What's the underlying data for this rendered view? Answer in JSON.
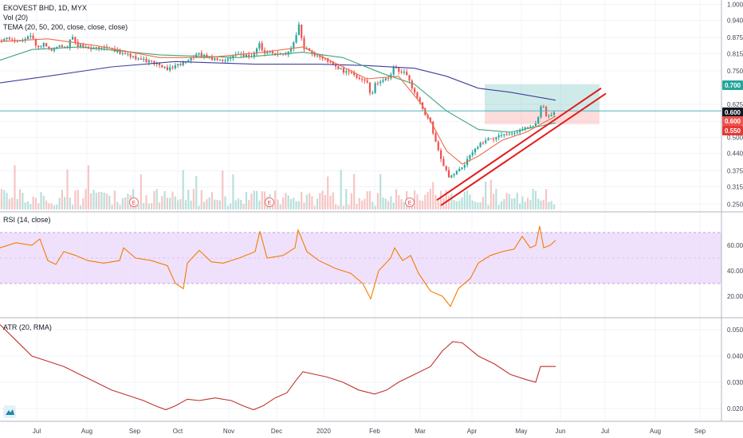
{
  "header": {
    "symbol_line": "EKOVEST BHD, 1D, MYX",
    "volume_label": "Vol (20)",
    "tema_label": "TEMA (20, 50, 200, close, close, close)"
  },
  "rsi_panel": {
    "label": "RSI (14, close)"
  },
  "atr_panel": {
    "label": "ATR (20, RMA)"
  },
  "price_tags": [
    {
      "text": "0.700",
      "color": "#26a69a"
    },
    {
      "text": "0.600",
      "color": "#131722"
    },
    {
      "text": "0.600",
      "color": "#ef5350"
    },
    {
      "text": "0.550",
      "color": "#e53935"
    }
  ],
  "earnings_marker": "E",
  "colors": {
    "up": "#26a69a",
    "down": "#ef5350",
    "tema20": "#ef6c4a",
    "tema50": "#3fa678",
    "tema200": "#3f3f9f",
    "trendline": "#e21c1c",
    "rsi_line": "#f57c00",
    "rsi_band": "#e9d7fb",
    "atr_line": "#c0342d",
    "hline": "#4fb3bf"
  },
  "chart_data": [
    {
      "type": "candlestick",
      "title": "EKOVEST BHD, 1D, MYX",
      "y_axis_ticks": [
        "1.000",
        "0.940",
        "0.875",
        "0.815",
        "0.750",
        "0.625",
        "0.560",
        "0.500",
        "0.440",
        "0.375",
        "0.315",
        "0.250"
      ],
      "ylim": [
        0.23,
        1.01
      ],
      "x_axis_ticks": [
        "Jul",
        "Aug",
        "Sep",
        "Oct",
        "Nov",
        "Dec",
        "2020",
        "Feb",
        "Mar",
        "Apr",
        "May",
        "Jun",
        "Jul",
        "Aug",
        "Sep"
      ],
      "close_keypoints": [
        {
          "x": 0,
          "y": 0.865
        },
        {
          "x": 10,
          "y": 0.875
        },
        {
          "x": 20,
          "y": 0.86
        },
        {
          "x": 30,
          "y": 0.87
        },
        {
          "x": 40,
          "y": 0.885
        },
        {
          "x": 45,
          "y": 0.84
        },
        {
          "x": 55,
          "y": 0.85
        },
        {
          "x": 65,
          "y": 0.83
        },
        {
          "x": 75,
          "y": 0.845
        },
        {
          "x": 85,
          "y": 0.84
        },
        {
          "x": 90,
          "y": 0.89
        },
        {
          "x": 95,
          "y": 0.85
        },
        {
          "x": 105,
          "y": 0.84
        },
        {
          "x": 115,
          "y": 0.83
        },
        {
          "x": 125,
          "y": 0.84
        },
        {
          "x": 135,
          "y": 0.835
        },
        {
          "x": 140,
          "y": 0.83
        },
        {
          "x": 150,
          "y": 0.82
        },
        {
          "x": 160,
          "y": 0.81
        },
        {
          "x": 170,
          "y": 0.8
        },
        {
          "x": 180,
          "y": 0.79
        },
        {
          "x": 190,
          "y": 0.785
        },
        {
          "x": 200,
          "y": 0.77
        },
        {
          "x": 210,
          "y": 0.755
        },
        {
          "x": 220,
          "y": 0.77
        },
        {
          "x": 230,
          "y": 0.78
        },
        {
          "x": 240,
          "y": 0.8
        },
        {
          "x": 250,
          "y": 0.815
        },
        {
          "x": 260,
          "y": 0.8
        },
        {
          "x": 270,
          "y": 0.795
        },
        {
          "x": 280,
          "y": 0.79
        },
        {
          "x": 290,
          "y": 0.8
        },
        {
          "x": 300,
          "y": 0.81
        },
        {
          "x": 310,
          "y": 0.805
        },
        {
          "x": 320,
          "y": 0.81
        },
        {
          "x": 325,
          "y": 0.86
        },
        {
          "x": 330,
          "y": 0.81
        },
        {
          "x": 340,
          "y": 0.82
        },
        {
          "x": 350,
          "y": 0.81
        },
        {
          "x": 360,
          "y": 0.815
        },
        {
          "x": 370,
          "y": 0.86
        },
        {
          "x": 375,
          "y": 0.92
        },
        {
          "x": 380,
          "y": 0.84
        },
        {
          "x": 390,
          "y": 0.82
        },
        {
          "x": 400,
          "y": 0.8
        },
        {
          "x": 410,
          "y": 0.79
        },
        {
          "x": 420,
          "y": 0.77
        },
        {
          "x": 430,
          "y": 0.75
        },
        {
          "x": 440,
          "y": 0.74
        },
        {
          "x": 450,
          "y": 0.72
        },
        {
          "x": 460,
          "y": 0.71
        },
        {
          "x": 465,
          "y": 0.65
        },
        {
          "x": 470,
          "y": 0.7
        },
        {
          "x": 480,
          "y": 0.71
        },
        {
          "x": 490,
          "y": 0.73
        },
        {
          "x": 495,
          "y": 0.77
        },
        {
          "x": 500,
          "y": 0.745
        },
        {
          "x": 505,
          "y": 0.75
        },
        {
          "x": 510,
          "y": 0.73
        },
        {
          "x": 515,
          "y": 0.7
        },
        {
          "x": 520,
          "y": 0.67
        },
        {
          "x": 525,
          "y": 0.64
        },
        {
          "x": 530,
          "y": 0.61
        },
        {
          "x": 535,
          "y": 0.58
        },
        {
          "x": 540,
          "y": 0.56
        },
        {
          "x": 545,
          "y": 0.5
        },
        {
          "x": 550,
          "y": 0.45
        },
        {
          "x": 555,
          "y": 0.4
        },
        {
          "x": 560,
          "y": 0.37
        },
        {
          "x": 565,
          "y": 0.345
        },
        {
          "x": 570,
          "y": 0.37
        },
        {
          "x": 575,
          "y": 0.38
        },
        {
          "x": 580,
          "y": 0.39
        },
        {
          "x": 585,
          "y": 0.41
        },
        {
          "x": 590,
          "y": 0.43
        },
        {
          "x": 595,
          "y": 0.45
        },
        {
          "x": 600,
          "y": 0.47
        },
        {
          "x": 605,
          "y": 0.48
        },
        {
          "x": 610,
          "y": 0.49
        },
        {
          "x": 620,
          "y": 0.5
        },
        {
          "x": 630,
          "y": 0.505
        },
        {
          "x": 640,
          "y": 0.51
        },
        {
          "x": 650,
          "y": 0.52
        },
        {
          "x": 660,
          "y": 0.535
        },
        {
          "x": 670,
          "y": 0.55
        },
        {
          "x": 675,
          "y": 0.57
        },
        {
          "x": 680,
          "y": 0.64
        },
        {
          "x": 685,
          "y": 0.58
        },
        {
          "x": 690,
          "y": 0.585
        },
        {
          "x": 697,
          "y": 0.595
        }
      ],
      "tema20_keypoints": [
        {
          "x": 0,
          "y": 0.86
        },
        {
          "x": 60,
          "y": 0.87
        },
        {
          "x": 120,
          "y": 0.845
        },
        {
          "x": 200,
          "y": 0.8
        },
        {
          "x": 260,
          "y": 0.8
        },
        {
          "x": 330,
          "y": 0.82
        },
        {
          "x": 380,
          "y": 0.84
        },
        {
          "x": 420,
          "y": 0.78
        },
        {
          "x": 460,
          "y": 0.72
        },
        {
          "x": 500,
          "y": 0.73
        },
        {
          "x": 530,
          "y": 0.62
        },
        {
          "x": 560,
          "y": 0.45
        },
        {
          "x": 580,
          "y": 0.4
        },
        {
          "x": 600,
          "y": 0.43
        },
        {
          "x": 630,
          "y": 0.49
        },
        {
          "x": 660,
          "y": 0.52
        },
        {
          "x": 697,
          "y": 0.58
        }
      ],
      "tema50_keypoints": [
        {
          "x": 0,
          "y": 0.79
        },
        {
          "x": 40,
          "y": 0.83
        },
        {
          "x": 100,
          "y": 0.84
        },
        {
          "x": 200,
          "y": 0.81
        },
        {
          "x": 300,
          "y": 0.8
        },
        {
          "x": 380,
          "y": 0.82
        },
        {
          "x": 430,
          "y": 0.8
        },
        {
          "x": 480,
          "y": 0.74
        },
        {
          "x": 520,
          "y": 0.7
        },
        {
          "x": 560,
          "y": 0.6
        },
        {
          "x": 600,
          "y": 0.53
        },
        {
          "x": 640,
          "y": 0.52
        },
        {
          "x": 697,
          "y": 0.555
        }
      ],
      "tema200_keypoints": [
        {
          "x": 0,
          "y": 0.705
        },
        {
          "x": 60,
          "y": 0.73
        },
        {
          "x": 140,
          "y": 0.765
        },
        {
          "x": 220,
          "y": 0.785
        },
        {
          "x": 320,
          "y": 0.775
        },
        {
          "x": 400,
          "y": 0.775
        },
        {
          "x": 460,
          "y": 0.77
        },
        {
          "x": 520,
          "y": 0.76
        },
        {
          "x": 560,
          "y": 0.73
        },
        {
          "x": 600,
          "y": 0.685
        },
        {
          "x": 640,
          "y": 0.67
        },
        {
          "x": 697,
          "y": 0.64
        }
      ],
      "trendlines": [
        {
          "from": {
            "x": 548,
            "y": 0.265
          },
          "to": {
            "x": 754,
            "y": 0.685
          }
        },
        {
          "from": {
            "x": 553,
            "y": 0.245
          },
          "to": {
            "x": 760,
            "y": 0.665
          }
        }
      ],
      "zones": [
        {
          "label": "profit",
          "from_x": 608,
          "to_x": 752,
          "y_low": 0.6,
          "y_high": 0.7
        },
        {
          "label": "loss",
          "from_x": 608,
          "to_x": 752,
          "y_low": 0.55,
          "y_high": 0.6
        }
      ],
      "hline": 0.6,
      "earnings_x": [
        168,
        338,
        514
      ]
    },
    {
      "type": "line",
      "title": "RSI (14, close)",
      "y_axis_ticks": [
        "60.00",
        "40.00",
        "20.00"
      ],
      "ylim": [
        5,
        85
      ],
      "band": [
        30,
        70
      ],
      "keypoints": [
        {
          "x": 0,
          "y": 58
        },
        {
          "x": 20,
          "y": 62
        },
        {
          "x": 40,
          "y": 60
        },
        {
          "x": 50,
          "y": 65
        },
        {
          "x": 60,
          "y": 48
        },
        {
          "x": 70,
          "y": 45
        },
        {
          "x": 80,
          "y": 55
        },
        {
          "x": 95,
          "y": 52
        },
        {
          "x": 110,
          "y": 48
        },
        {
          "x": 130,
          "y": 46
        },
        {
          "x": 150,
          "y": 48
        },
        {
          "x": 155,
          "y": 58
        },
        {
          "x": 170,
          "y": 50
        },
        {
          "x": 190,
          "y": 48
        },
        {
          "x": 210,
          "y": 44
        },
        {
          "x": 220,
          "y": 30
        },
        {
          "x": 230,
          "y": 26
        },
        {
          "x": 235,
          "y": 46
        },
        {
          "x": 250,
          "y": 56
        },
        {
          "x": 265,
          "y": 47
        },
        {
          "x": 280,
          "y": 46
        },
        {
          "x": 300,
          "y": 50
        },
        {
          "x": 320,
          "y": 55
        },
        {
          "x": 326,
          "y": 71
        },
        {
          "x": 335,
          "y": 50
        },
        {
          "x": 355,
          "y": 52
        },
        {
          "x": 370,
          "y": 58
        },
        {
          "x": 374,
          "y": 72
        },
        {
          "x": 385,
          "y": 55
        },
        {
          "x": 400,
          "y": 48
        },
        {
          "x": 420,
          "y": 42
        },
        {
          "x": 440,
          "y": 38
        },
        {
          "x": 455,
          "y": 30
        },
        {
          "x": 465,
          "y": 18
        },
        {
          "x": 475,
          "y": 40
        },
        {
          "x": 490,
          "y": 50
        },
        {
          "x": 495,
          "y": 58
        },
        {
          "x": 505,
          "y": 48
        },
        {
          "x": 515,
          "y": 52
        },
        {
          "x": 525,
          "y": 38
        },
        {
          "x": 540,
          "y": 24
        },
        {
          "x": 555,
          "y": 20
        },
        {
          "x": 565,
          "y": 12
        },
        {
          "x": 575,
          "y": 26
        },
        {
          "x": 590,
          "y": 34
        },
        {
          "x": 600,
          "y": 46
        },
        {
          "x": 615,
          "y": 52
        },
        {
          "x": 630,
          "y": 55
        },
        {
          "x": 645,
          "y": 57
        },
        {
          "x": 655,
          "y": 67
        },
        {
          "x": 665,
          "y": 58
        },
        {
          "x": 672,
          "y": 60
        },
        {
          "x": 677,
          "y": 75
        },
        {
          "x": 682,
          "y": 58
        },
        {
          "x": 690,
          "y": 60
        },
        {
          "x": 697,
          "y": 64
        }
      ]
    },
    {
      "type": "line",
      "title": "ATR (20, RMA)",
      "y_axis_ticks": [
        "0.050",
        "0.040",
        "0.030",
        "0.020"
      ],
      "ylim": [
        0.016,
        0.054
      ],
      "keypoints": [
        {
          "x": 0,
          "y": 0.052
        },
        {
          "x": 20,
          "y": 0.046
        },
        {
          "x": 40,
          "y": 0.04
        },
        {
          "x": 60,
          "y": 0.038
        },
        {
          "x": 80,
          "y": 0.036
        },
        {
          "x": 100,
          "y": 0.033
        },
        {
          "x": 120,
          "y": 0.03
        },
        {
          "x": 140,
          "y": 0.027
        },
        {
          "x": 160,
          "y": 0.025
        },
        {
          "x": 180,
          "y": 0.023
        },
        {
          "x": 195,
          "y": 0.021
        },
        {
          "x": 208,
          "y": 0.0195
        },
        {
          "x": 220,
          "y": 0.021
        },
        {
          "x": 235,
          "y": 0.0235
        },
        {
          "x": 250,
          "y": 0.023
        },
        {
          "x": 270,
          "y": 0.024
        },
        {
          "x": 290,
          "y": 0.023
        },
        {
          "x": 305,
          "y": 0.021
        },
        {
          "x": 318,
          "y": 0.0195
        },
        {
          "x": 330,
          "y": 0.021
        },
        {
          "x": 345,
          "y": 0.024
        },
        {
          "x": 360,
          "y": 0.026
        },
        {
          "x": 372,
          "y": 0.031
        },
        {
          "x": 380,
          "y": 0.034
        },
        {
          "x": 395,
          "y": 0.033
        },
        {
          "x": 410,
          "y": 0.032
        },
        {
          "x": 430,
          "y": 0.03
        },
        {
          "x": 450,
          "y": 0.027
        },
        {
          "x": 470,
          "y": 0.0255
        },
        {
          "x": 485,
          "y": 0.027
        },
        {
          "x": 500,
          "y": 0.03
        },
        {
          "x": 520,
          "y": 0.033
        },
        {
          "x": 540,
          "y": 0.036
        },
        {
          "x": 555,
          "y": 0.042
        },
        {
          "x": 568,
          "y": 0.0455
        },
        {
          "x": 580,
          "y": 0.045
        },
        {
          "x": 600,
          "y": 0.04
        },
        {
          "x": 620,
          "y": 0.037
        },
        {
          "x": 640,
          "y": 0.033
        },
        {
          "x": 660,
          "y": 0.031
        },
        {
          "x": 672,
          "y": 0.03
        },
        {
          "x": 678,
          "y": 0.036
        },
        {
          "x": 690,
          "y": 0.036
        },
        {
          "x": 697,
          "y": 0.036
        }
      ]
    }
  ]
}
